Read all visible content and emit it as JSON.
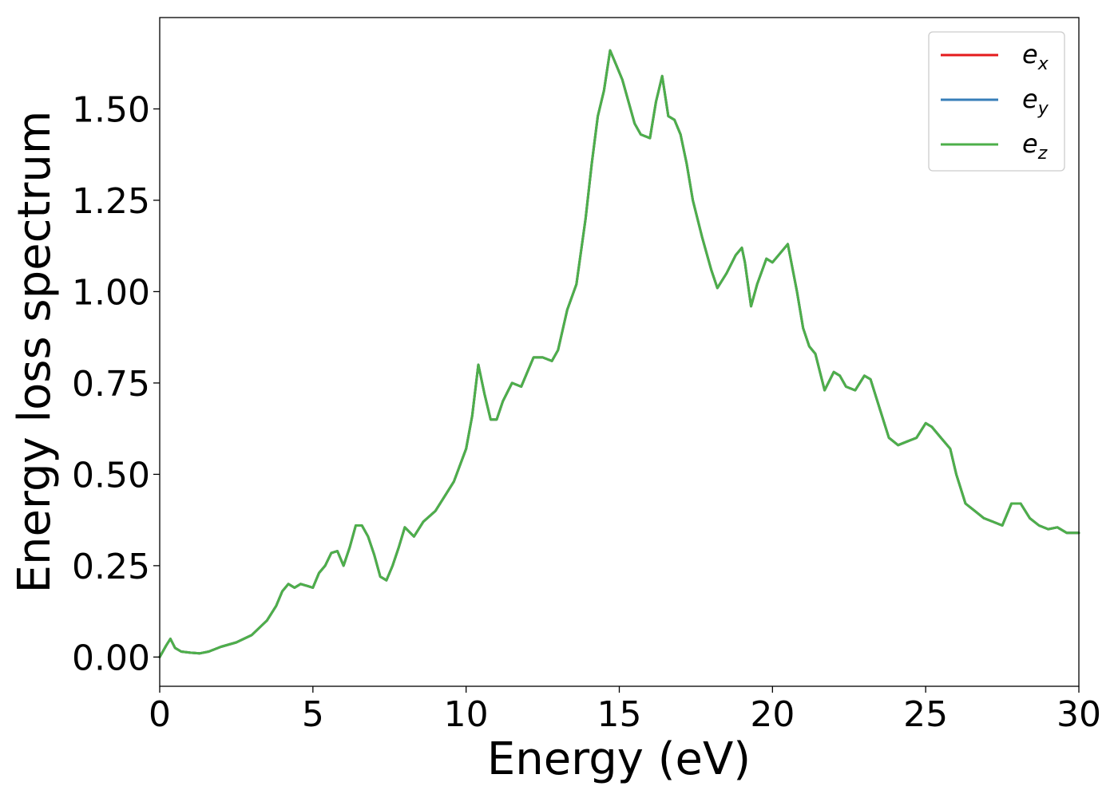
{
  "chart_data": {
    "type": "line",
    "xlabel": "Energy (eV)",
    "ylabel": "Energy loss spectrum",
    "xlim": [
      0,
      30
    ],
    "ylim": [
      -0.08,
      1.75
    ],
    "xticks": [
      0,
      5,
      10,
      15,
      20,
      25,
      30
    ],
    "xtick_labels": [
      "0",
      "5",
      "10",
      "15",
      "20",
      "25",
      "30"
    ],
    "yticks": [
      0,
      0.25,
      0.5,
      0.75,
      1.0,
      1.25,
      1.5
    ],
    "ytick_labels": [
      "0.00",
      "0.25",
      "0.50",
      "0.75",
      "1.00",
      "1.25",
      "1.50"
    ],
    "grid": false,
    "legend_position": "top-right",
    "x": [
      0,
      0.2,
      0.35,
      0.5,
      0.7,
      1.0,
      1.3,
      1.6,
      2.0,
      2.5,
      3.0,
      3.5,
      3.8,
      4.0,
      4.2,
      4.4,
      4.6,
      4.8,
      5.0,
      5.2,
      5.4,
      5.6,
      5.8,
      6.0,
      6.2,
      6.4,
      6.6,
      6.8,
      7.0,
      7.2,
      7.4,
      7.6,
      7.8,
      8.0,
      8.3,
      8.6,
      9.0,
      9.3,
      9.6,
      10.0,
      10.2,
      10.4,
      10.6,
      10.8,
      11.0,
      11.2,
      11.5,
      11.8,
      12.0,
      12.2,
      12.5,
      12.8,
      13.0,
      13.3,
      13.6,
      13.9,
      14.1,
      14.3,
      14.5,
      14.7,
      14.9,
      15.1,
      15.3,
      15.5,
      15.7,
      16.0,
      16.2,
      16.4,
      16.6,
      16.8,
      17.0,
      17.2,
      17.4,
      17.7,
      18.0,
      18.2,
      18.5,
      18.8,
      19.0,
      19.1,
      19.3,
      19.5,
      19.8,
      20.0,
      20.2,
      20.5,
      20.8,
      21.0,
      21.2,
      21.4,
      21.7,
      22.0,
      22.2,
      22.4,
      22.7,
      23.0,
      23.2,
      23.5,
      23.8,
      24.1,
      24.4,
      24.7,
      25.0,
      25.2,
      25.5,
      25.8,
      26.0,
      26.3,
      26.6,
      26.9,
      27.2,
      27.5,
      27.8,
      28.1,
      28.4,
      28.7,
      29.0,
      29.3,
      29.6,
      30.0
    ],
    "series": [
      {
        "name": "e_x",
        "color": "#e41a1c",
        "values": [
          0.0,
          0.03,
          0.05,
          0.025,
          0.015,
          0.012,
          0.01,
          0.015,
          0.028,
          0.04,
          0.06,
          0.1,
          0.14,
          0.18,
          0.2,
          0.19,
          0.2,
          0.195,
          0.19,
          0.23,
          0.25,
          0.285,
          0.29,
          0.25,
          0.3,
          0.36,
          0.36,
          0.33,
          0.28,
          0.22,
          0.21,
          0.25,
          0.3,
          0.355,
          0.33,
          0.37,
          0.4,
          0.44,
          0.48,
          0.57,
          0.66,
          0.8,
          0.72,
          0.65,
          0.65,
          0.7,
          0.75,
          0.74,
          0.78,
          0.82,
          0.82,
          0.81,
          0.84,
          0.95,
          1.02,
          1.2,
          1.35,
          1.48,
          1.55,
          1.66,
          1.62,
          1.58,
          1.52,
          1.46,
          1.43,
          1.42,
          1.52,
          1.59,
          1.48,
          1.47,
          1.43,
          1.35,
          1.25,
          1.15,
          1.06,
          1.01,
          1.05,
          1.1,
          1.12,
          1.08,
          0.96,
          1.02,
          1.09,
          1.08,
          1.1,
          1.13,
          1.0,
          0.9,
          0.85,
          0.83,
          0.73,
          0.78,
          0.77,
          0.74,
          0.73,
          0.77,
          0.76,
          0.68,
          0.6,
          0.58,
          0.59,
          0.6,
          0.64,
          0.63,
          0.6,
          0.57,
          0.5,
          0.42,
          0.4,
          0.38,
          0.37,
          0.36,
          0.42,
          0.42,
          0.38,
          0.36,
          0.35,
          0.355,
          0.34,
          0.34
        ]
      },
      {
        "name": "e_y",
        "color": "#377eb8",
        "values": [
          0.0,
          0.03,
          0.05,
          0.025,
          0.015,
          0.012,
          0.01,
          0.015,
          0.028,
          0.04,
          0.06,
          0.1,
          0.14,
          0.18,
          0.2,
          0.19,
          0.2,
          0.195,
          0.19,
          0.23,
          0.25,
          0.285,
          0.29,
          0.25,
          0.3,
          0.36,
          0.36,
          0.33,
          0.28,
          0.22,
          0.21,
          0.25,
          0.3,
          0.355,
          0.33,
          0.37,
          0.4,
          0.44,
          0.48,
          0.57,
          0.66,
          0.8,
          0.72,
          0.65,
          0.65,
          0.7,
          0.75,
          0.74,
          0.78,
          0.82,
          0.82,
          0.81,
          0.84,
          0.95,
          1.02,
          1.2,
          1.35,
          1.48,
          1.55,
          1.66,
          1.62,
          1.58,
          1.52,
          1.46,
          1.43,
          1.42,
          1.52,
          1.59,
          1.48,
          1.47,
          1.43,
          1.35,
          1.25,
          1.15,
          1.06,
          1.01,
          1.05,
          1.1,
          1.12,
          1.08,
          0.96,
          1.02,
          1.09,
          1.08,
          1.1,
          1.13,
          1.0,
          0.9,
          0.85,
          0.83,
          0.73,
          0.78,
          0.77,
          0.74,
          0.73,
          0.77,
          0.76,
          0.68,
          0.6,
          0.58,
          0.59,
          0.6,
          0.64,
          0.63,
          0.6,
          0.57,
          0.5,
          0.42,
          0.4,
          0.38,
          0.37,
          0.36,
          0.42,
          0.42,
          0.38,
          0.36,
          0.35,
          0.355,
          0.34,
          0.34
        ]
      },
      {
        "name": "e_z",
        "color": "#4daf4a",
        "values": [
          0.0,
          0.03,
          0.05,
          0.025,
          0.015,
          0.012,
          0.01,
          0.015,
          0.028,
          0.04,
          0.06,
          0.1,
          0.14,
          0.18,
          0.2,
          0.19,
          0.2,
          0.195,
          0.19,
          0.23,
          0.25,
          0.285,
          0.29,
          0.25,
          0.3,
          0.36,
          0.36,
          0.33,
          0.28,
          0.22,
          0.21,
          0.25,
          0.3,
          0.355,
          0.33,
          0.37,
          0.4,
          0.44,
          0.48,
          0.57,
          0.66,
          0.8,
          0.72,
          0.65,
          0.65,
          0.7,
          0.75,
          0.74,
          0.78,
          0.82,
          0.82,
          0.81,
          0.84,
          0.95,
          1.02,
          1.2,
          1.35,
          1.48,
          1.55,
          1.66,
          1.62,
          1.58,
          1.52,
          1.46,
          1.43,
          1.42,
          1.52,
          1.59,
          1.48,
          1.47,
          1.43,
          1.35,
          1.25,
          1.15,
          1.06,
          1.01,
          1.05,
          1.1,
          1.12,
          1.08,
          0.96,
          1.02,
          1.09,
          1.08,
          1.1,
          1.13,
          1.0,
          0.9,
          0.85,
          0.83,
          0.73,
          0.78,
          0.77,
          0.74,
          0.73,
          0.77,
          0.76,
          0.68,
          0.6,
          0.58,
          0.59,
          0.6,
          0.64,
          0.63,
          0.6,
          0.57,
          0.5,
          0.42,
          0.4,
          0.38,
          0.37,
          0.36,
          0.42,
          0.42,
          0.38,
          0.36,
          0.35,
          0.355,
          0.34,
          0.34
        ]
      }
    ],
    "legend": [
      {
        "base": "e",
        "sub": "x",
        "color": "#e41a1c"
      },
      {
        "base": "e",
        "sub": "y",
        "color": "#377eb8"
      },
      {
        "base": "e",
        "sub": "z",
        "color": "#4daf4a"
      }
    ]
  }
}
